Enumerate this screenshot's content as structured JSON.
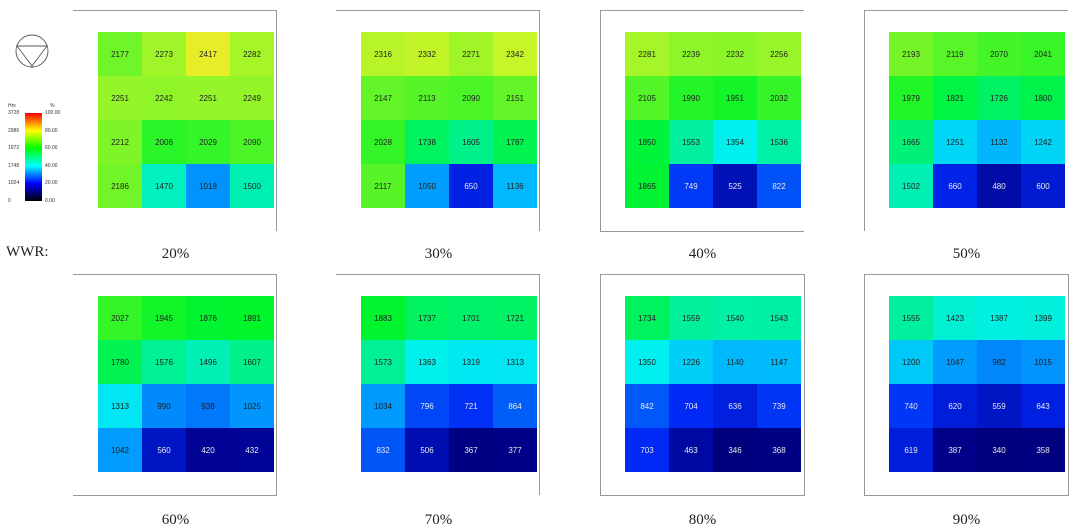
{
  "wwr_label": "WWR:",
  "legend": {
    "left_title": "Hrs",
    "right_title": "%",
    "left_ticks": [
      "3728",
      "2986",
      "1972",
      "1748",
      "1024",
      "0"
    ],
    "right_ticks": [
      "100.00",
      "80.00",
      "60.00",
      "40.00",
      "20.00",
      "0.00"
    ]
  },
  "chart_data": {
    "type": "heatmap",
    "value_unit": "Hrs",
    "color_scale": [
      "#000000",
      "#0000ff",
      "#00ffff",
      "#00ff00",
      "#ffff00",
      "#ff0000"
    ],
    "panels": [
      {
        "label": "20%",
        "grid": [
          [
            2177,
            2273,
            2417,
            2282
          ],
          [
            2251,
            2242,
            2251,
            2249
          ],
          [
            2212,
            2006,
            2029,
            2090
          ],
          [
            2186,
            1470,
            1018,
            1500
          ]
        ]
      },
      {
        "label": "30%",
        "grid": [
          [
            2316,
            2332,
            2271,
            2342
          ],
          [
            2147,
            2113,
            2090,
            2151
          ],
          [
            2028,
            1738,
            1605,
            1787
          ],
          [
            2117,
            1050,
            650,
            1136
          ]
        ]
      },
      {
        "label": "40%",
        "grid": [
          [
            2281,
            2239,
            2232,
            2256
          ],
          [
            2105,
            1990,
            1951,
            2032
          ],
          [
            1850,
            1553,
            1354,
            1536
          ],
          [
            1865,
            749,
            525,
            822
          ]
        ]
      },
      {
        "label": "50%",
        "grid": [
          [
            2193,
            2119,
            2070,
            2041
          ],
          [
            1979,
            1821,
            1726,
            1800
          ],
          [
            1665,
            1251,
            1132,
            1242
          ],
          [
            1502,
            660,
            480,
            600
          ]
        ]
      },
      {
        "label": "60%",
        "grid": [
          [
            2027,
            1945,
            1876,
            1891
          ],
          [
            1780,
            1576,
            1496,
            1607
          ],
          [
            1313,
            990,
            938,
            1025
          ],
          [
            1042,
            560,
            420,
            432
          ]
        ]
      },
      {
        "label": "70%",
        "grid": [
          [
            1883,
            1737,
            1701,
            1721
          ],
          [
            1573,
            1363,
            1319,
            1313
          ],
          [
            1034,
            796,
            721,
            864
          ],
          [
            832,
            506,
            367,
            377
          ]
        ]
      },
      {
        "label": "80%",
        "grid": [
          [
            1734,
            1559,
            1540,
            1543
          ],
          [
            1350,
            1226,
            1140,
            1147
          ],
          [
            842,
            704,
            636,
            739
          ],
          [
            703,
            463,
            346,
            368
          ]
        ]
      },
      {
        "label": "90%",
        "grid": [
          [
            1555,
            1423,
            1387,
            1399
          ],
          [
            1200,
            1047,
            982,
            1015
          ],
          [
            740,
            620,
            559,
            643
          ],
          [
            619,
            387,
            340,
            358
          ]
        ]
      }
    ]
  }
}
